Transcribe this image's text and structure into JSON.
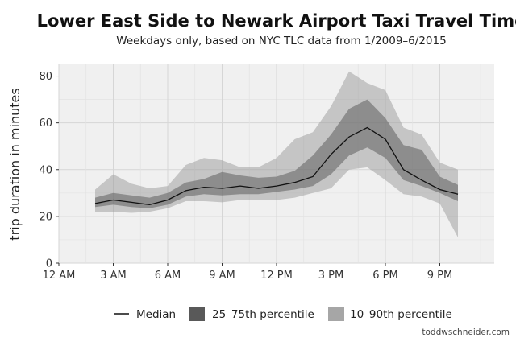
{
  "chart_data": {
    "type": "area",
    "title": "Lower East Side to Newark Airport Taxi Travel Time",
    "subtitle": "Weekdays only, based on NYC TLC data from 1/2009–6/2015",
    "xlabel": "",
    "ylabel": "trip duration in minutes",
    "xlim": [
      0,
      24
    ],
    "ylim": [
      0,
      85
    ],
    "x_ticks": [
      {
        "value": 0,
        "label": "12 AM"
      },
      {
        "value": 3,
        "label": "3 AM"
      },
      {
        "value": 6,
        "label": "6 AM"
      },
      {
        "value": 9,
        "label": "9 AM"
      },
      {
        "value": 12,
        "label": "12 PM"
      },
      {
        "value": 15,
        "label": "3 PM"
      },
      {
        "value": 18,
        "label": "6 PM"
      },
      {
        "value": 21,
        "label": "9 PM"
      }
    ],
    "y_ticks": [
      0,
      20,
      40,
      60,
      80
    ],
    "grid": true,
    "legend_position": "bottom",
    "x": [
      2,
      3,
      4,
      5,
      6,
      7,
      8,
      9,
      10,
      11,
      12,
      13,
      14,
      15,
      16,
      17,
      18,
      19,
      20,
      21,
      22
    ],
    "series": [
      {
        "name": "Median",
        "kind": "line",
        "color": "#111111",
        "values": [
          25.5,
          27,
          26,
          25,
          27,
          31,
          32.5,
          32,
          33,
          32,
          33,
          34.5,
          37,
          46.5,
          54,
          58,
          53,
          40,
          35.5,
          31.5,
          29.5
        ]
      },
      {
        "name": "25–75th percentile",
        "kind": "band",
        "color": "#555555",
        "opacity": 0.5,
        "lower": [
          24,
          25,
          24,
          23.5,
          25,
          28.5,
          29.5,
          29,
          29.5,
          29.5,
          30.5,
          31.5,
          33,
          38,
          46,
          49.5,
          45,
          35.5,
          33,
          30,
          26.5
        ],
        "upper": [
          28,
          30,
          29,
          28,
          30,
          34.5,
          36,
          39,
          37.5,
          36.5,
          37,
          39.5,
          46,
          55,
          66,
          70,
          62,
          50.5,
          48.5,
          37,
          33.5
        ]
      },
      {
        "name": "10–90th percentile",
        "kind": "band",
        "color": "#999999",
        "opacity": 0.5,
        "lower": [
          22,
          22,
          21.5,
          22,
          23.5,
          26.5,
          26.5,
          26,
          27,
          27,
          27,
          28,
          30,
          32,
          40,
          41,
          35.5,
          29.5,
          28.5,
          25.5,
          11
        ],
        "upper": [
          31.5,
          38,
          34,
          32,
          33,
          42,
          45,
          44,
          41,
          41,
          45,
          53,
          56,
          67,
          82,
          77,
          74,
          58,
          55,
          43,
          40
        ]
      }
    ]
  },
  "legend": {
    "items": [
      {
        "label": "Median"
      },
      {
        "label": "25–75th percentile"
      },
      {
        "label": "10–90th percentile"
      }
    ]
  },
  "credit": "toddwschneider.com"
}
